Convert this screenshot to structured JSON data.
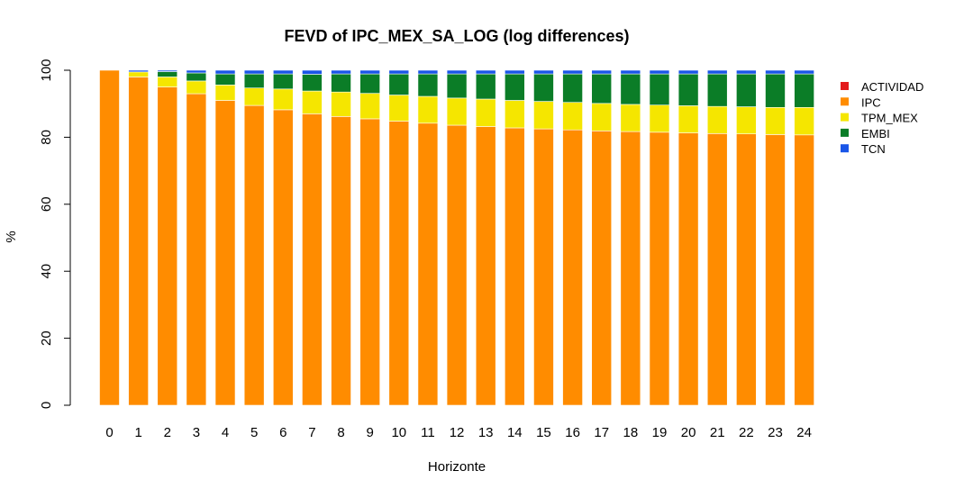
{
  "chart_data": {
    "type": "bar",
    "stacked": true,
    "title": "FEVD of IPC_MEX_SA_LOG (log differences)",
    "xlabel": "Horizonte",
    "ylabel": "%",
    "ylim": [
      0,
      100
    ],
    "yticks": [
      0,
      20,
      40,
      60,
      80,
      100
    ],
    "grid": false,
    "legend_position": "right",
    "categories": [
      "0",
      "1",
      "2",
      "3",
      "4",
      "5",
      "6",
      "7",
      "8",
      "9",
      "10",
      "11",
      "12",
      "13",
      "14",
      "15",
      "16",
      "17",
      "18",
      "19",
      "20",
      "21",
      "22",
      "23",
      "24"
    ],
    "series": [
      {
        "name": "ACTIVIDAD",
        "color": "#e31a1c",
        "values": [
          0,
          0,
          0,
          0,
          0,
          0,
          0,
          0,
          0,
          0,
          0,
          0,
          0,
          0,
          0,
          0,
          0,
          0,
          0,
          0,
          0,
          0,
          0,
          0,
          0
        ]
      },
      {
        "name": "IPC",
        "color": "#ff8c00",
        "values": [
          100,
          98,
          95,
          93,
          91,
          89.5,
          88.2,
          87,
          86.2,
          85.5,
          84.8,
          84.2,
          83.6,
          83.2,
          82.8,
          82.5,
          82.2,
          81.9,
          81.7,
          81.5,
          81.3,
          81.1,
          81,
          80.8,
          80.7
        ]
      },
      {
        "name": "TPM_MEX",
        "color": "#f5e600",
        "values": [
          0,
          1.5,
          3,
          3.8,
          4.6,
          5.2,
          6.2,
          6.8,
          7.3,
          7.6,
          7.8,
          8,
          8.1,
          8.2,
          8.2,
          8.2,
          8.2,
          8.2,
          8.1,
          8.1,
          8.1,
          8.1,
          8.1,
          8.1,
          8.2
        ]
      },
      {
        "name": "EMBI",
        "color": "#0b7d27",
        "values": [
          0,
          0,
          1.6,
          2.4,
          3.3,
          4.2,
          4.5,
          5,
          5.4,
          5.8,
          6.3,
          6.7,
          7.2,
          7.5,
          7.9,
          8.2,
          8.5,
          8.8,
          9.1,
          9.3,
          9.5,
          9.7,
          9.8,
          10,
          10
        ]
      },
      {
        "name": "TCN",
        "color": "#1a56e8",
        "values": [
          0,
          0.5,
          0.4,
          0.8,
          1.1,
          1.1,
          1.1,
          1.2,
          1.1,
          1.1,
          1.1,
          1.1,
          1.1,
          1.1,
          1.1,
          1.1,
          1.1,
          1.1,
          1.1,
          1.1,
          1.1,
          1.1,
          1.1,
          1.1,
          1.1
        ]
      }
    ]
  }
}
